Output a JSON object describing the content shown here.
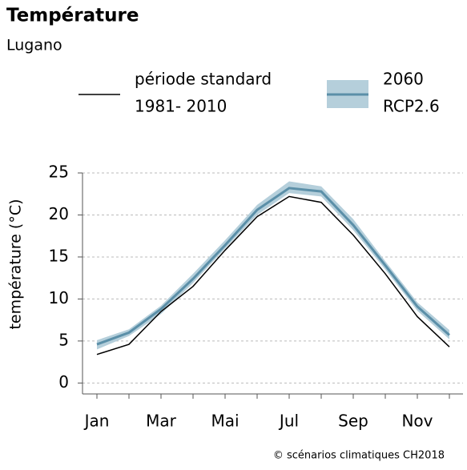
{
  "chart_data": {
    "type": "line-band",
    "title": "Température",
    "subtitle": "Lugano",
    "ylabel": "température (°C)",
    "credit": "© scénarios climatiques CH2018",
    "categories": [
      "Jan",
      null,
      "Mar",
      null,
      "Mai",
      null,
      "Jul",
      null,
      "Sep",
      null,
      "Nov",
      null
    ],
    "series": [
      {
        "name": "période standard",
        "name_line2": "1981- 2010",
        "color": "#000000",
        "values": [
          3.4,
          4.6,
          8.5,
          11.5,
          15.8,
          19.8,
          22.2,
          21.5,
          17.6,
          13.0,
          7.9,
          4.3
        ]
      },
      {
        "name": "2060",
        "name_line2": "RCP2.6",
        "color": "#5b8fa8",
        "band_color": "#b5cfdb",
        "values": [
          4.6,
          6.0,
          8.8,
          12.4,
          16.4,
          20.6,
          23.2,
          22.8,
          18.8,
          14.0,
          9.1,
          5.7
        ],
        "lower": [
          4.0,
          5.6,
          8.2,
          11.9,
          16.0,
          20.0,
          22.6,
          22.2,
          18.2,
          13.5,
          8.6,
          5.2
        ],
        "upper": [
          5.1,
          6.4,
          9.2,
          13.0,
          17.0,
          21.2,
          24.0,
          23.4,
          19.5,
          14.5,
          9.6,
          6.3
        ]
      }
    ],
    "ylim": [
      -1.3,
      25
    ],
    "yticks": [
      0,
      5,
      10,
      15,
      20,
      25
    ],
    "grid": true
  }
}
